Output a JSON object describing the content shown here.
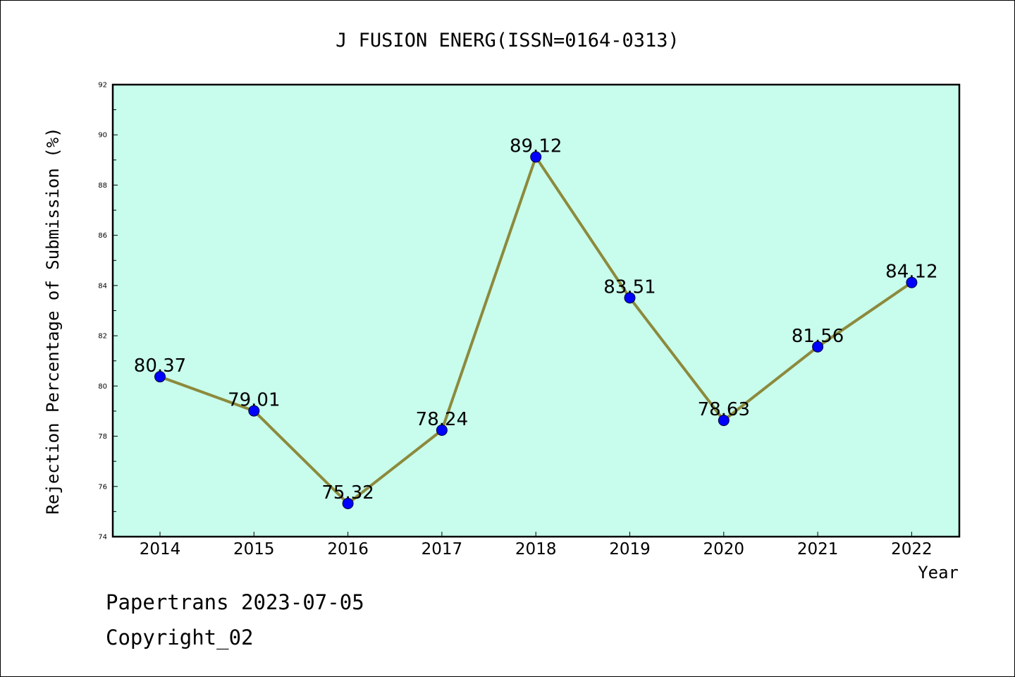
{
  "chart_data": {
    "type": "line",
    "title": "J FUSION ENERG(ISSN=0164-0313)",
    "xlabel": "Year",
    "ylabel": "Rejection Percentage of Submission (%)",
    "categories": [
      "2014",
      "2015",
      "2016",
      "2017",
      "2018",
      "2019",
      "2020",
      "2021",
      "2022"
    ],
    "values": [
      80.37,
      79.01,
      75.32,
      78.24,
      89.12,
      83.51,
      78.63,
      81.56,
      84.12
    ],
    "data_labels": [
      "80.37",
      "79.01",
      "75.32",
      "78.24",
      "89.12",
      "83.51",
      "78.63",
      "81.56",
      "84.12"
    ],
    "ylim": [
      74,
      92
    ],
    "yticks": [
      "74",
      "76",
      "78",
      "80",
      "82",
      "84",
      "86",
      "88",
      "90",
      "92"
    ],
    "grid": false,
    "colors": {
      "plot_background": "#c8fcec",
      "line": "#8c8a3c",
      "marker": "#0000ff"
    }
  },
  "footer": {
    "line1": "Papertrans 2023-07-05",
    "line2": "Copyright_02"
  }
}
